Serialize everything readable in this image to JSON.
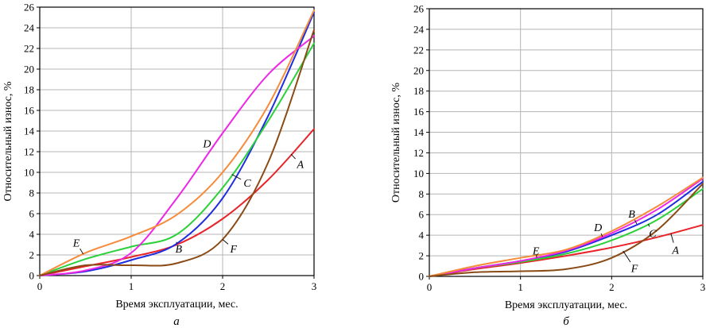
{
  "chart_data": [
    {
      "type": "line",
      "panel_label": "а",
      "xlabel": "Время эксплуатации, мес.",
      "ylabel": "Относительный износ, %",
      "xlim": [
        0,
        3
      ],
      "ylim": [
        0,
        26
      ],
      "xticks": [
        "0",
        "1",
        "2",
        "3"
      ],
      "yticks": [
        "0",
        "2",
        "4",
        "6",
        "8",
        "10",
        "12",
        "14",
        "16",
        "18",
        "20",
        "22",
        "24",
        "26"
      ],
      "grid": true,
      "series": [
        {
          "name": "A",
          "color": "#e8242a",
          "points": [
            [
              0,
              0
            ],
            [
              0.5,
              0.9
            ],
            [
              1,
              1.8
            ],
            [
              1.5,
              3
            ],
            [
              2,
              5.5
            ],
            [
              2.5,
              9.3
            ],
            [
              3,
              14.2
            ]
          ],
          "label_at": [
            2.85,
            10.8
          ]
        },
        {
          "name": "B",
          "color": "#1f2de0",
          "points": [
            [
              0,
              0
            ],
            [
              0.5,
              0.4
            ],
            [
              1,
              1.5
            ],
            [
              1.5,
              3.1
            ],
            [
              2,
              7.5
            ],
            [
              2.5,
              15.5
            ],
            [
              3,
              25.5
            ]
          ],
          "label_at": [
            1.52,
            2.6
          ]
        },
        {
          "name": "C",
          "color": "#2bd13a",
          "points": [
            [
              0,
              0
            ],
            [
              0.5,
              1.6
            ],
            [
              1,
              2.8
            ],
            [
              1.5,
              4
            ],
            [
              2,
              8.5
            ],
            [
              2.5,
              15
            ],
            [
              3,
              22.5
            ]
          ],
          "label_at": [
            2.27,
            9.0
          ]
        },
        {
          "name": "D",
          "color": "#ee26e6",
          "points": [
            [
              0,
              0
            ],
            [
              0.5,
              0.5
            ],
            [
              1,
              2.2
            ],
            [
              1.5,
              7.5
            ],
            [
              2,
              13.8
            ],
            [
              2.5,
              19.5
            ],
            [
              3,
              23.2
            ]
          ],
          "label_at": [
            1.83,
            12.8
          ]
        },
        {
          "name": "E",
          "color": "#f58b3b",
          "points": [
            [
              0,
              0
            ],
            [
              0.5,
              2.2
            ],
            [
              1,
              3.8
            ],
            [
              1.5,
              5.9
            ],
            [
              2,
              10
            ],
            [
              2.5,
              16.5
            ],
            [
              3,
              25.7
            ]
          ],
          "label_at": [
            0.4,
            3.2
          ]
        },
        {
          "name": "F",
          "color": "#8a4b16",
          "points": [
            [
              0,
              0
            ],
            [
              0.5,
              1
            ],
            [
              1,
              1
            ],
            [
              1.5,
              1.2
            ],
            [
              2,
              3.5
            ],
            [
              2.5,
              11
            ],
            [
              3,
              23.8
            ]
          ],
          "label_at": [
            2.12,
            2.6
          ]
        }
      ]
    },
    {
      "type": "line",
      "panel_label": "б",
      "xlabel": "Время эксплуатации, мес.",
      "ylabel": "Относительный износ, %",
      "xlim": [
        0,
        3
      ],
      "ylim": [
        0,
        26
      ],
      "xticks": [
        "0",
        "1",
        "2",
        "3"
      ],
      "yticks": [
        "0",
        "2",
        "4",
        "6",
        "8",
        "10",
        "12",
        "14",
        "16",
        "18",
        "20",
        "22",
        "24",
        "26"
      ],
      "grid": true,
      "series": [
        {
          "name": "A",
          "color": "#e8242a",
          "points": [
            [
              0,
              0
            ],
            [
              0.5,
              0.7
            ],
            [
              1,
              1.3
            ],
            [
              1.5,
              2
            ],
            [
              2,
              2.8
            ],
            [
              2.5,
              3.8
            ],
            [
              3,
              5
            ]
          ],
          "label_at": [
            2.7,
            2.6
          ]
        },
        {
          "name": "B",
          "color": "#1f2de0",
          "points": [
            [
              0,
              0
            ],
            [
              0.5,
              0.8
            ],
            [
              1,
              1.5
            ],
            [
              1.5,
              2.4
            ],
            [
              2,
              4
            ],
            [
              2.5,
              6
            ],
            [
              3,
              9.2
            ]
          ],
          "label_at": [
            2.22,
            6.1
          ]
        },
        {
          "name": "C",
          "color": "#2bd13a",
          "points": [
            [
              0,
              0
            ],
            [
              0.5,
              0.8
            ],
            [
              1,
              1.4
            ],
            [
              1.5,
              2.2
            ],
            [
              2,
              3.5
            ],
            [
              2.5,
              5.5
            ],
            [
              3,
              8.5
            ]
          ],
          "label_at": [
            2.45,
            4.2
          ]
        },
        {
          "name": "D",
          "color": "#ee26e6",
          "points": [
            [
              0,
              0
            ],
            [
              0.5,
              0.8
            ],
            [
              1,
              1.5
            ],
            [
              1.5,
              2.5
            ],
            [
              2,
              4.2
            ],
            [
              2.5,
              6.5
            ],
            [
              3,
              9.5
            ]
          ],
          "label_at": [
            1.85,
            4.8
          ]
        },
        {
          "name": "E",
          "color": "#f58b3b",
          "points": [
            [
              0,
              0
            ],
            [
              0.5,
              1
            ],
            [
              1,
              1.8
            ],
            [
              1.5,
              2.6
            ],
            [
              2,
              4.4
            ],
            [
              2.5,
              6.8
            ],
            [
              3,
              9.6
            ]
          ],
          "label_at": [
            1.17,
            2.5
          ]
        },
        {
          "name": "F",
          "color": "#8a4b16",
          "points": [
            [
              0,
              0
            ],
            [
              0.5,
              0.4
            ],
            [
              1,
              0.5
            ],
            [
              1.5,
              0.7
            ],
            [
              2,
              1.8
            ],
            [
              2.5,
              4.5
            ],
            [
              3,
              9
            ]
          ],
          "label_at": [
            2.25,
            0.8
          ]
        }
      ]
    }
  ]
}
